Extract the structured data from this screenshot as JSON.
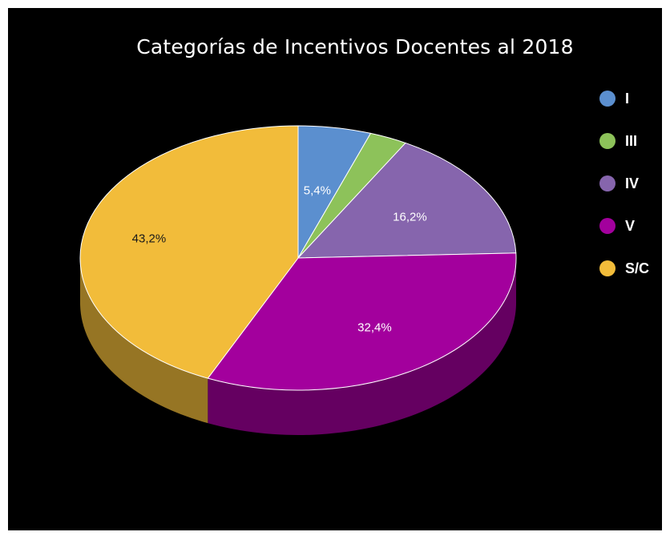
{
  "chart_data": {
    "type": "pie",
    "title": "Categorías de Incentivos Docentes al 2018",
    "categories": [
      "I",
      "III",
      "IV",
      "V",
      "S/C"
    ],
    "values": [
      5.4,
      2.8,
      16.2,
      32.4,
      43.2
    ],
    "data_labels": [
      "5,4%",
      "",
      "16,2%",
      "32,4%",
      "43,2%"
    ],
    "colors": [
      "#5b8fcf",
      "#8dc25a",
      "#8665ad",
      "#a3009d",
      "#f2bc3a"
    ],
    "label_colors": [
      "#ffffff",
      "#ffffff",
      "#ffffff",
      "#ffffff",
      "#1a1a1a"
    ],
    "start_angle_deg": 0,
    "direction": "clockwise",
    "style": "3d-tilted",
    "legend_position": "right",
    "background": "#000000"
  }
}
